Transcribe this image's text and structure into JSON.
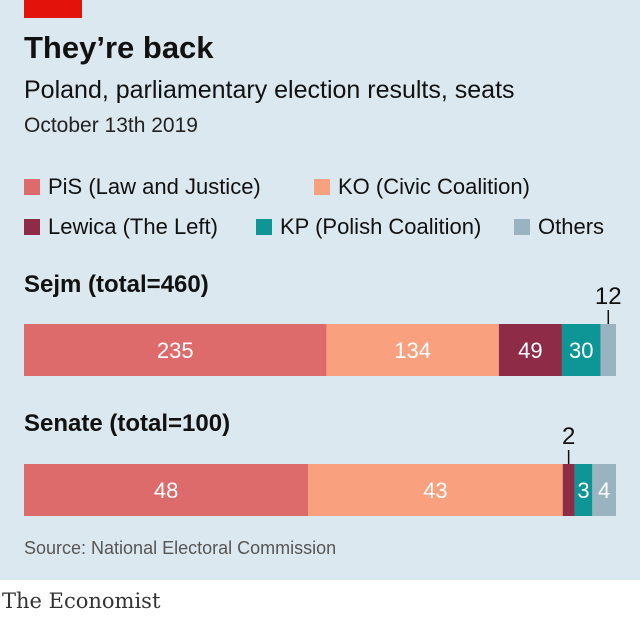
{
  "header": {
    "title": "They’re back",
    "subtitle": "Poland, parliamentary election results, seats",
    "date": "October 13th 2019"
  },
  "legend": [
    {
      "label": "PiS (Law and Justice)",
      "color": "#de6b6b"
    },
    {
      "label": "KO (Civic Coalition)",
      "color": "#f9a07e"
    },
    {
      "label": "Lewica (The Left)",
      "color": "#8e2c48"
    },
    {
      "label": "KP (Polish Coalition)",
      "color": "#0e9696"
    },
    {
      "label": "Others",
      "color": "#9ab3c1"
    }
  ],
  "chart_data": [
    {
      "type": "bar",
      "stacked": true,
      "orientation": "horizontal",
      "title": "Sejm (total=460)",
      "total": 460,
      "categories": [
        "PiS (Law and Justice)",
        "KO (Civic Coalition)",
        "Lewica (The Left)",
        "KP (Polish Coalition)",
        "Others"
      ],
      "values": [
        235,
        134,
        49,
        30,
        12
      ],
      "labels": [
        "235",
        "134",
        "49",
        "30",
        "12"
      ]
    },
    {
      "type": "bar",
      "stacked": true,
      "orientation": "horizontal",
      "title": "Senate (total=100)",
      "total": 100,
      "categories": [
        "PiS (Law and Justice)",
        "KO (Civic Coalition)",
        "Lewica (The Left)",
        "KP (Polish Coalition)",
        "Others"
      ],
      "values": [
        48,
        43,
        2,
        3,
        4
      ],
      "labels": [
        "48",
        "43",
        "2",
        "3",
        "4"
      ]
    }
  ],
  "footer": {
    "source": "Source: National Electoral Commission",
    "brand": "The Economist"
  }
}
